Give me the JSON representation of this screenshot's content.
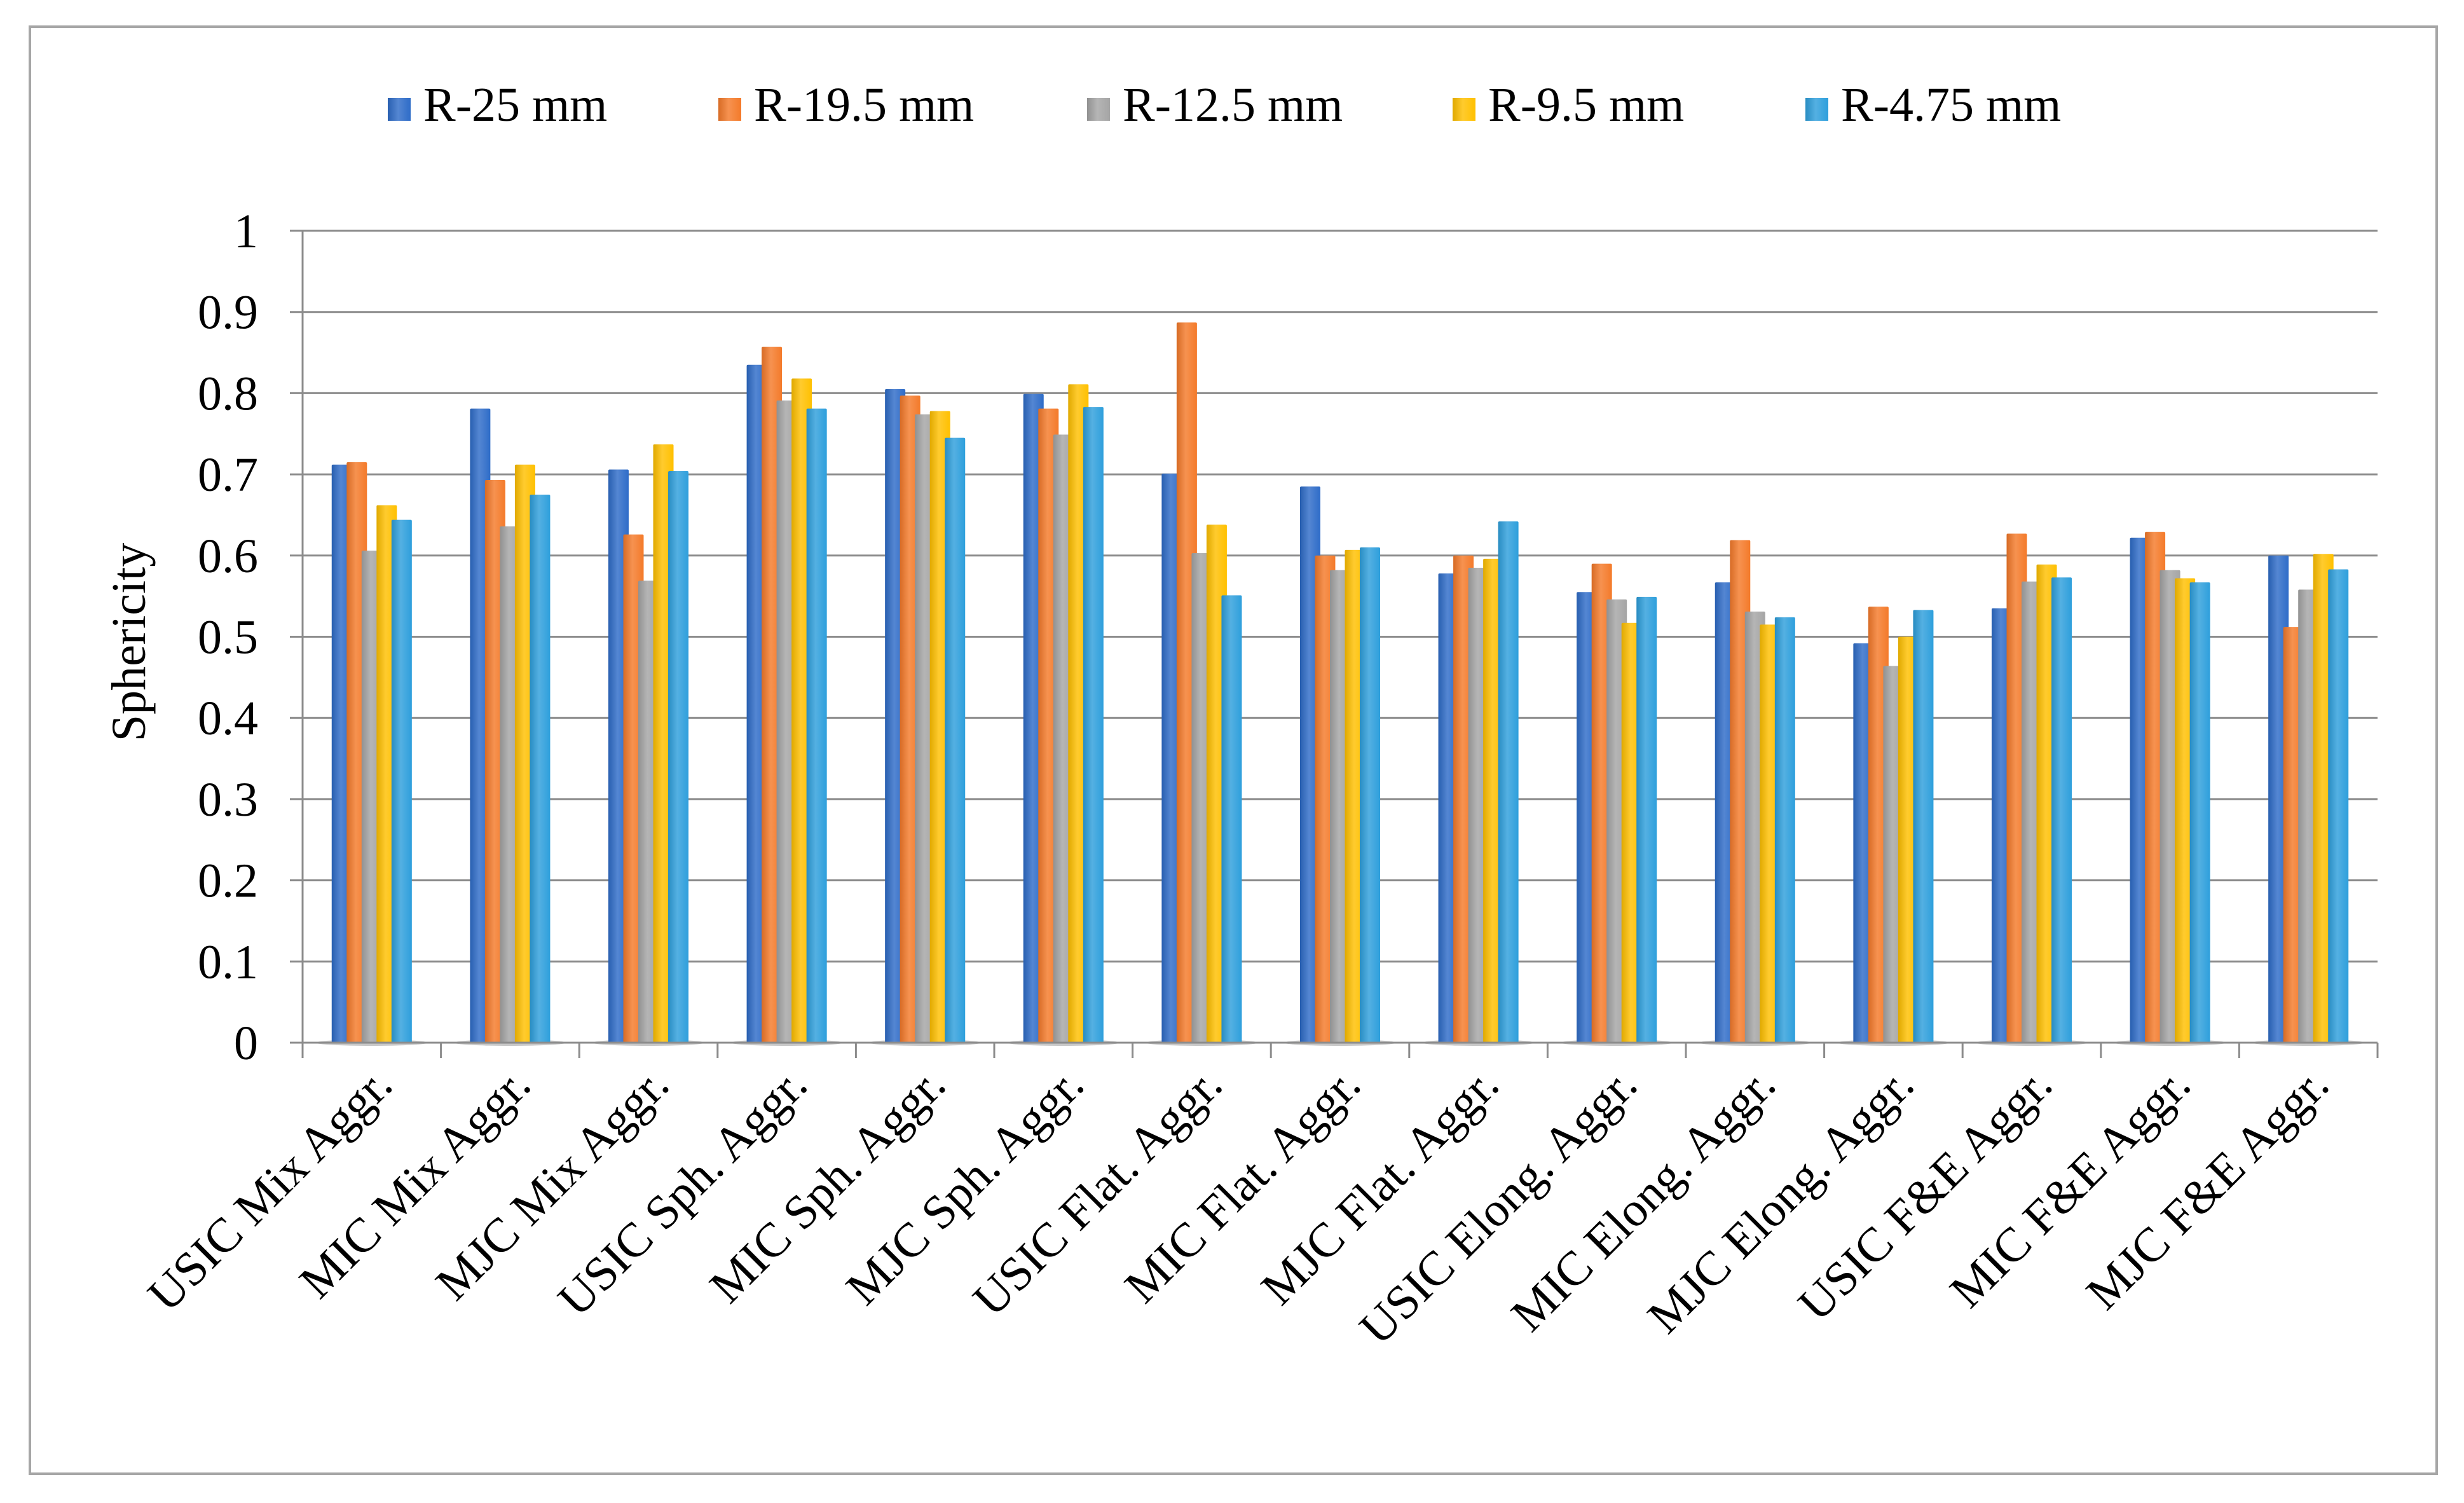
{
  "chart_data": {
    "type": "bar",
    "title": "",
    "xlabel": "",
    "ylabel": "Sphericity",
    "ylim": [
      0,
      1
    ],
    "yticks": [
      "0",
      "0.1",
      "0.2",
      "0.3",
      "0.4",
      "0.5",
      "0.6",
      "0.7",
      "0.8",
      "0.9",
      "1"
    ],
    "grid": true,
    "legend_position": "top",
    "categories": [
      "USIC Mix Aggr.",
      "MIC Mix Aggr.",
      "MJC Mix Aggr.",
      "USIC Sph. Aggr.",
      "MIC Sph. Aggr.",
      "MJC Sph. Aggr.",
      "USIC Flat. Aggr.",
      "MIC Flat. Aggr.",
      "MJC Flat. Aggr.",
      "USIC Elong. Aggr.",
      "MIC Elong. Aggr.",
      "MJC Elong. Aggr.",
      "USIC F&E Aggr.",
      "MIC F&E Aggr.",
      "MJC F&E Aggr."
    ],
    "series": [
      {
        "name": "R-25 mm",
        "color": "#2e6cc8",
        "values": [
          0.712,
          0.781,
          0.706,
          0.835,
          0.805,
          0.799,
          0.701,
          0.685,
          0.578,
          0.555,
          0.567,
          0.492,
          0.535,
          0.622,
          0.6
        ]
      },
      {
        "name": "R-19.5 mm",
        "color": "#f47a2a",
        "values": [
          0.715,
          0.693,
          0.626,
          0.857,
          0.797,
          0.781,
          0.887,
          0.6,
          0.6,
          0.59,
          0.619,
          0.537,
          0.627,
          0.629,
          0.512
        ]
      },
      {
        "name": "R-12.5 mm",
        "color": "#a5a5a5",
        "values": [
          0.606,
          0.636,
          0.569,
          0.791,
          0.774,
          0.749,
          0.603,
          0.582,
          0.585,
          0.546,
          0.531,
          0.464,
          0.568,
          0.582,
          0.558
        ]
      },
      {
        "name": "R-9.5 mm",
        "color": "#ffc000",
        "values": [
          0.662,
          0.712,
          0.737,
          0.818,
          0.778,
          0.811,
          0.638,
          0.607,
          0.596,
          0.517,
          0.515,
          0.5,
          0.589,
          0.572,
          0.602
        ]
      },
      {
        "name": "R-4.75 mm",
        "color": "#2e9fdc",
        "values": [
          0.644,
          0.675,
          0.704,
          0.781,
          0.745,
          0.783,
          0.551,
          0.61,
          0.642,
          0.549,
          0.524,
          0.533,
          0.573,
          0.567,
          0.583
        ]
      }
    ]
  }
}
